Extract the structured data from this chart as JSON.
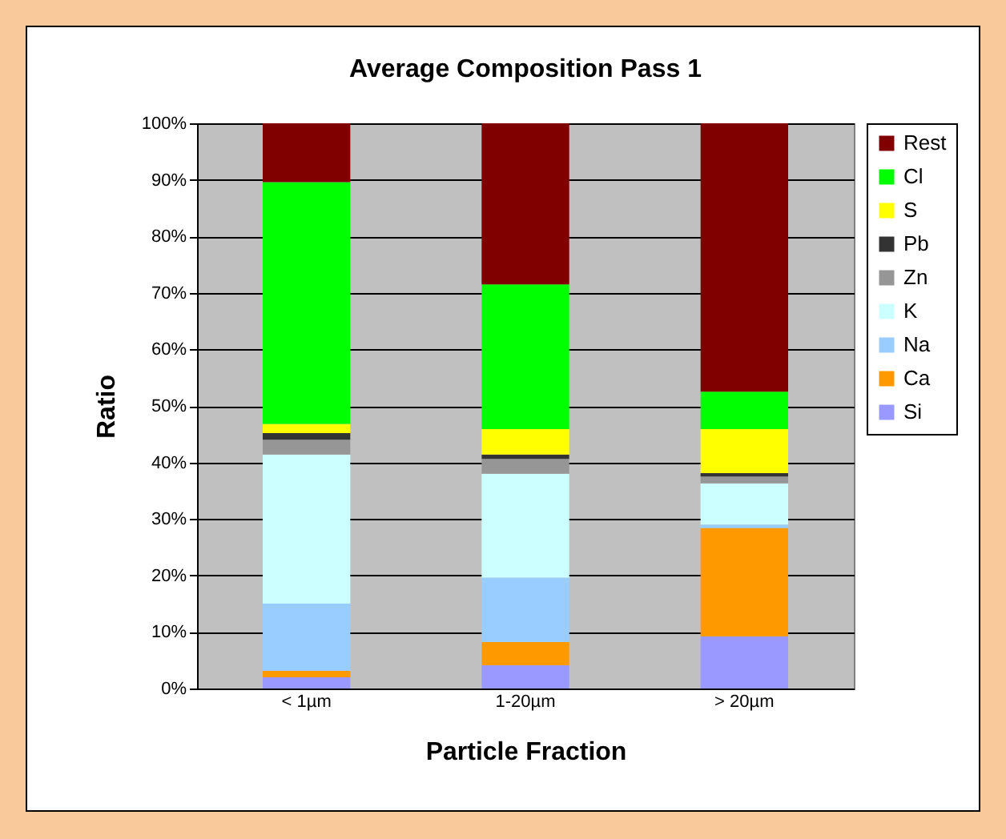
{
  "chart_data": {
    "type": "bar",
    "stacked": true,
    "title": "Average Composition Pass 1",
    "xlabel": "Particle Fraction",
    "ylabel": "Ratio",
    "categories": [
      "< 1µm",
      "1-20µm",
      "> 20µm"
    ],
    "series": [
      {
        "name": "Si",
        "color": "#9999ff",
        "values": [
          2.0,
          4.1,
          9.2
        ]
      },
      {
        "name": "Ca",
        "color": "#ff9900",
        "values": [
          1.1,
          4.1,
          19.2
        ]
      },
      {
        "name": "Na",
        "color": "#99ccff",
        "values": [
          11.9,
          11.4,
          0.6
        ]
      },
      {
        "name": "K",
        "color": "#ccffff",
        "values": [
          26.4,
          18.4,
          7.3
        ]
      },
      {
        "name": "Zn",
        "color": "#969696",
        "values": [
          2.6,
          2.6,
          1.2
        ]
      },
      {
        "name": "Pb",
        "color": "#333333",
        "values": [
          1.2,
          0.8,
          0.6
        ]
      },
      {
        "name": "S",
        "color": "#ffff00",
        "values": [
          1.6,
          4.5,
          7.8
        ]
      },
      {
        "name": "Cl",
        "color": "#00ff00",
        "values": [
          42.8,
          25.6,
          6.6
        ]
      },
      {
        "name": "Rest",
        "color": "#800000",
        "values": [
          10.4,
          28.5,
          47.5
        ]
      }
    ],
    "ylim": [
      0,
      100
    ],
    "yticks": [
      {
        "value": 0,
        "label": "0%"
      },
      {
        "value": 10,
        "label": "10%"
      },
      {
        "value": 20,
        "label": "20%"
      },
      {
        "value": 30,
        "label": "30%"
      },
      {
        "value": 40,
        "label": "40%"
      },
      {
        "value": 50,
        "label": "50%"
      },
      {
        "value": 60,
        "label": "60%"
      },
      {
        "value": 70,
        "label": "70%"
      },
      {
        "value": 80,
        "label": "80%"
      },
      {
        "value": 90,
        "label": "90%"
      },
      {
        "value": 100,
        "label": "100%"
      }
    ],
    "grid": "y",
    "legend": "right"
  }
}
